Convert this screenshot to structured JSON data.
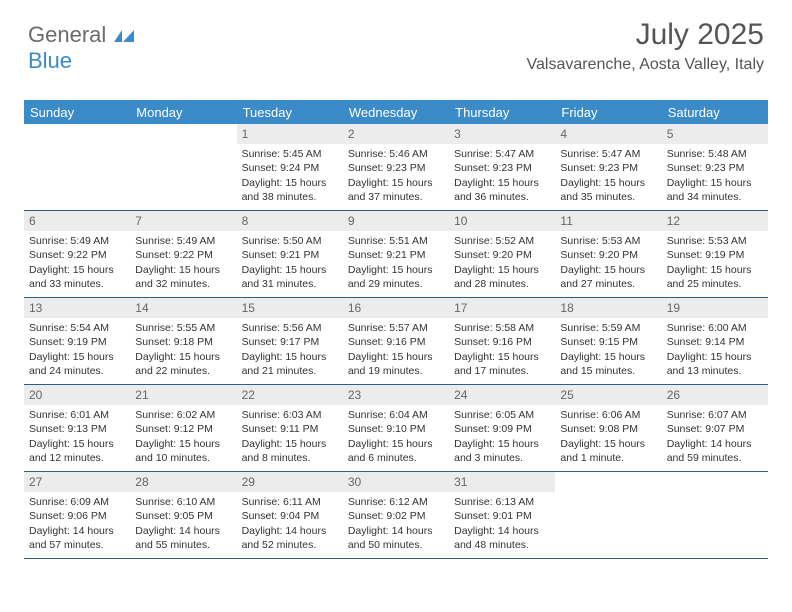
{
  "logo": {
    "text1": "General",
    "text2": "Blue"
  },
  "header": {
    "month_title": "July 2025",
    "location": "Valsavarenche, Aosta Valley, Italy"
  },
  "colors": {
    "header_bg": "#3b8bc9",
    "header_fg": "#ffffff",
    "daynum_bg": "#ececec",
    "daynum_fg": "#666666",
    "week_border": "#2b5f88",
    "text": "#333333"
  },
  "day_names": [
    "Sunday",
    "Monday",
    "Tuesday",
    "Wednesday",
    "Thursday",
    "Friday",
    "Saturday"
  ],
  "first_weekday": 2,
  "days": [
    {
      "n": 1,
      "sunrise": "5:45 AM",
      "sunset": "9:24 PM",
      "daylight": "15 hours and 38 minutes."
    },
    {
      "n": 2,
      "sunrise": "5:46 AM",
      "sunset": "9:23 PM",
      "daylight": "15 hours and 37 minutes."
    },
    {
      "n": 3,
      "sunrise": "5:47 AM",
      "sunset": "9:23 PM",
      "daylight": "15 hours and 36 minutes."
    },
    {
      "n": 4,
      "sunrise": "5:47 AM",
      "sunset": "9:23 PM",
      "daylight": "15 hours and 35 minutes."
    },
    {
      "n": 5,
      "sunrise": "5:48 AM",
      "sunset": "9:23 PM",
      "daylight": "15 hours and 34 minutes."
    },
    {
      "n": 6,
      "sunrise": "5:49 AM",
      "sunset": "9:22 PM",
      "daylight": "15 hours and 33 minutes."
    },
    {
      "n": 7,
      "sunrise": "5:49 AM",
      "sunset": "9:22 PM",
      "daylight": "15 hours and 32 minutes."
    },
    {
      "n": 8,
      "sunrise": "5:50 AM",
      "sunset": "9:21 PM",
      "daylight": "15 hours and 31 minutes."
    },
    {
      "n": 9,
      "sunrise": "5:51 AM",
      "sunset": "9:21 PM",
      "daylight": "15 hours and 29 minutes."
    },
    {
      "n": 10,
      "sunrise": "5:52 AM",
      "sunset": "9:20 PM",
      "daylight": "15 hours and 28 minutes."
    },
    {
      "n": 11,
      "sunrise": "5:53 AM",
      "sunset": "9:20 PM",
      "daylight": "15 hours and 27 minutes."
    },
    {
      "n": 12,
      "sunrise": "5:53 AM",
      "sunset": "9:19 PM",
      "daylight": "15 hours and 25 minutes."
    },
    {
      "n": 13,
      "sunrise": "5:54 AM",
      "sunset": "9:19 PM",
      "daylight": "15 hours and 24 minutes."
    },
    {
      "n": 14,
      "sunrise": "5:55 AM",
      "sunset": "9:18 PM",
      "daylight": "15 hours and 22 minutes."
    },
    {
      "n": 15,
      "sunrise": "5:56 AM",
      "sunset": "9:17 PM",
      "daylight": "15 hours and 21 minutes."
    },
    {
      "n": 16,
      "sunrise": "5:57 AM",
      "sunset": "9:16 PM",
      "daylight": "15 hours and 19 minutes."
    },
    {
      "n": 17,
      "sunrise": "5:58 AM",
      "sunset": "9:16 PM",
      "daylight": "15 hours and 17 minutes."
    },
    {
      "n": 18,
      "sunrise": "5:59 AM",
      "sunset": "9:15 PM",
      "daylight": "15 hours and 15 minutes."
    },
    {
      "n": 19,
      "sunrise": "6:00 AM",
      "sunset": "9:14 PM",
      "daylight": "15 hours and 13 minutes."
    },
    {
      "n": 20,
      "sunrise": "6:01 AM",
      "sunset": "9:13 PM",
      "daylight": "15 hours and 12 minutes."
    },
    {
      "n": 21,
      "sunrise": "6:02 AM",
      "sunset": "9:12 PM",
      "daylight": "15 hours and 10 minutes."
    },
    {
      "n": 22,
      "sunrise": "6:03 AM",
      "sunset": "9:11 PM",
      "daylight": "15 hours and 8 minutes."
    },
    {
      "n": 23,
      "sunrise": "6:04 AM",
      "sunset": "9:10 PM",
      "daylight": "15 hours and 6 minutes."
    },
    {
      "n": 24,
      "sunrise": "6:05 AM",
      "sunset": "9:09 PM",
      "daylight": "15 hours and 3 minutes."
    },
    {
      "n": 25,
      "sunrise": "6:06 AM",
      "sunset": "9:08 PM",
      "daylight": "15 hours and 1 minute."
    },
    {
      "n": 26,
      "sunrise": "6:07 AM",
      "sunset": "9:07 PM",
      "daylight": "14 hours and 59 minutes."
    },
    {
      "n": 27,
      "sunrise": "6:09 AM",
      "sunset": "9:06 PM",
      "daylight": "14 hours and 57 minutes."
    },
    {
      "n": 28,
      "sunrise": "6:10 AM",
      "sunset": "9:05 PM",
      "daylight": "14 hours and 55 minutes."
    },
    {
      "n": 29,
      "sunrise": "6:11 AM",
      "sunset": "9:04 PM",
      "daylight": "14 hours and 52 minutes."
    },
    {
      "n": 30,
      "sunrise": "6:12 AM",
      "sunset": "9:02 PM",
      "daylight": "14 hours and 50 minutes."
    },
    {
      "n": 31,
      "sunrise": "6:13 AM",
      "sunset": "9:01 PM",
      "daylight": "14 hours and 48 minutes."
    }
  ],
  "labels": {
    "sunrise_prefix": "Sunrise: ",
    "sunset_prefix": "Sunset: ",
    "daylight_prefix": "Daylight: "
  }
}
